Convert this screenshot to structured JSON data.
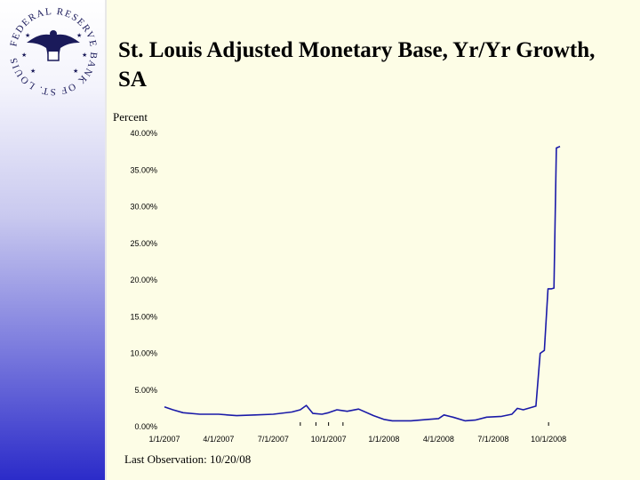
{
  "slide": {
    "title": "St. Louis Adjusted Monetary Base, Yr/Yr Growth, SA",
    "footnote": "Last Observation: 10/20/08",
    "seal_text": "FEDERAL RESERVE BANK OF ST. LOUIS",
    "colors": {
      "panel": "#fdfde6",
      "line": "#1a1aa8",
      "sidebar_bottom": "#2b2bc9"
    }
  },
  "chart_data": {
    "type": "line",
    "title": "St. Louis Adjusted Monetary Base, Yr/Yr Growth, SA",
    "ylabel": "Percent",
    "xlabel": "",
    "ylim": [
      0,
      40
    ],
    "yticks": [
      "0.00%",
      "5.00%",
      "10.00%",
      "15.00%",
      "20.00%",
      "25.00%",
      "30.00%",
      "35.00%",
      "40.00%"
    ],
    "xticks": [
      "1/1/2007",
      "4/1/2007",
      "7/1/2007",
      "10/1/2007",
      "1/1/2008",
      "4/1/2008",
      "7/1/2008",
      "10/1/2008"
    ],
    "grid": false,
    "series": [
      {
        "color": "#1a1aa8",
        "x": [
          "2007-01-01",
          "2007-01-15",
          "2007-02-01",
          "2007-03-01",
          "2007-04-01",
          "2007-05-01",
          "2007-06-01",
          "2007-07-01",
          "2007-08-01",
          "2007-08-15",
          "2007-08-25",
          "2007-09-05",
          "2007-09-20",
          "2007-10-01",
          "2007-10-15",
          "2007-11-01",
          "2007-11-20",
          "2007-12-15",
          "2008-01-01",
          "2008-01-15",
          "2008-02-15",
          "2008-03-15",
          "2008-04-01",
          "2008-04-10",
          "2008-04-25",
          "2008-05-15",
          "2008-06-01",
          "2008-06-20",
          "2008-07-15",
          "2008-08-01",
          "2008-08-10",
          "2008-08-20",
          "2008-09-01",
          "2008-09-10",
          "2008-09-17",
          "2008-09-24",
          "2008-09-30",
          "2008-10-06",
          "2008-10-10",
          "2008-10-14",
          "2008-10-20"
        ],
        "y": [
          2.7,
          2.3,
          1.9,
          1.7,
          1.7,
          1.5,
          1.6,
          1.7,
          2.0,
          2.3,
          2.9,
          1.8,
          1.7,
          1.9,
          2.3,
          2.1,
          2.4,
          1.5,
          1.0,
          0.8,
          0.8,
          1.0,
          1.1,
          1.6,
          1.3,
          0.8,
          0.9,
          1.3,
          1.4,
          1.7,
          2.5,
          2.3,
          2.6,
          2.8,
          10.0,
          10.4,
          18.8,
          18.8,
          18.9,
          38.0,
          38.2
        ]
      }
    ]
  }
}
